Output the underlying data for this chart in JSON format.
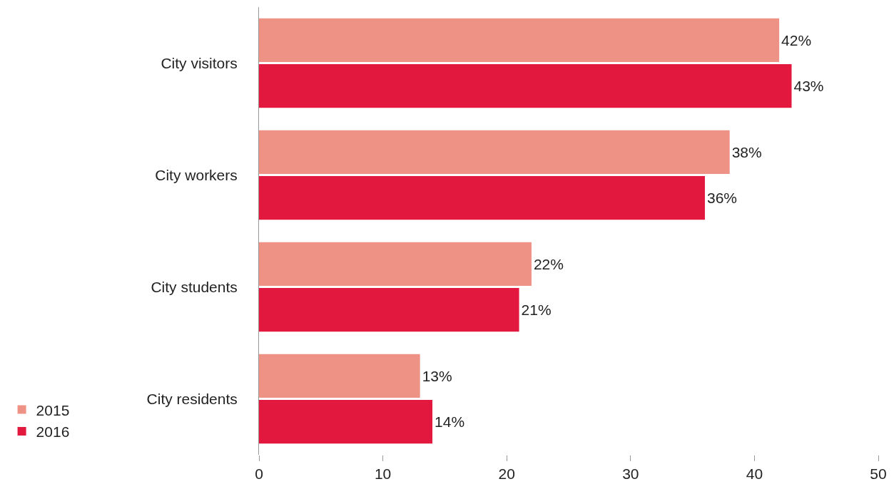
{
  "chart_data": {
    "type": "bar",
    "orientation": "horizontal",
    "categories": [
      "City visitors",
      "City workers",
      "City students",
      "City residents"
    ],
    "series": [
      {
        "name": "2015",
        "color": "#ee9286",
        "values": [
          42,
          38,
          22,
          13
        ],
        "value_labels": [
          "42%",
          "38%",
          "22%",
          "13%"
        ]
      },
      {
        "name": "2016",
        "color": "#e3183f",
        "values": [
          43,
          36,
          21,
          14
        ],
        "value_labels": [
          "43%",
          "36%",
          "21%",
          "14%"
        ]
      }
    ],
    "xlim": [
      0,
      50
    ],
    "xticks": [
      0,
      10,
      20,
      30,
      40,
      50
    ],
    "legend": "bottom left"
  }
}
